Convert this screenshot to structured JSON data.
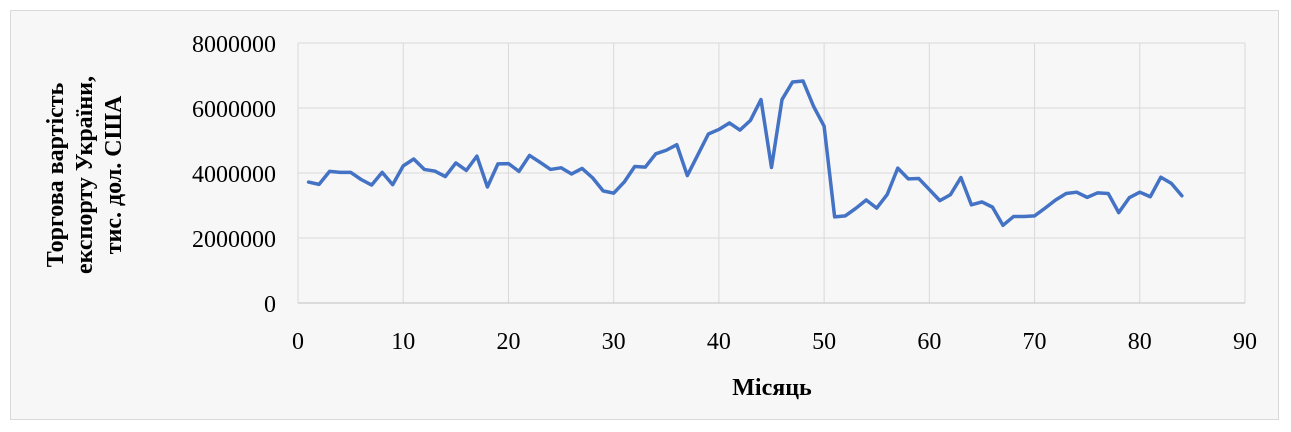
{
  "chart_data": {
    "type": "line",
    "title": "",
    "xlabel": "Місяць",
    "ylabel_lines": [
      "Торгова вартість",
      "експорту України,",
      "тис. дол. США"
    ],
    "xlim": [
      0,
      90
    ],
    "ylim": [
      0,
      8000000
    ],
    "xticks": [
      0,
      10,
      20,
      30,
      40,
      50,
      60,
      70,
      80,
      90
    ],
    "yticks": [
      0,
      2000000,
      4000000,
      6000000,
      8000000
    ],
    "xtick_labels": [
      "0",
      "10",
      "20",
      "30",
      "40",
      "50",
      "60",
      "70",
      "80",
      "90"
    ],
    "ytick_labels": [
      "0",
      "2000000",
      "4000000",
      "6000000",
      "8000000"
    ],
    "grid": true,
    "legend": "none",
    "series": [
      {
        "color": "#4472c4",
        "x": [
          1,
          2,
          3,
          4,
          5,
          6,
          7,
          8,
          9,
          10,
          11,
          12,
          13,
          14,
          15,
          16,
          17,
          18,
          19,
          20,
          21,
          22,
          23,
          24,
          25,
          26,
          27,
          28,
          29,
          30,
          31,
          32,
          33,
          34,
          35,
          36,
          37,
          38,
          39,
          40,
          41,
          42,
          43,
          44,
          45,
          46,
          47,
          48,
          49,
          50,
          51,
          52,
          53,
          54,
          55,
          56,
          57,
          58,
          59,
          60,
          61,
          62,
          63,
          64,
          65,
          66,
          67,
          68,
          69,
          70,
          71,
          72,
          73,
          74,
          75,
          76,
          77,
          78,
          79,
          80,
          81,
          82,
          83,
          84
        ],
        "values": [
          3720000,
          3650000,
          4050000,
          4020000,
          4020000,
          3800000,
          3630000,
          4020000,
          3640000,
          4220000,
          4430000,
          4110000,
          4060000,
          3890000,
          4310000,
          4080000,
          4520000,
          3570000,
          4280000,
          4290000,
          4050000,
          4540000,
          4330000,
          4110000,
          4160000,
          3970000,
          4140000,
          3850000,
          3450000,
          3380000,
          3720000,
          4200000,
          4180000,
          4590000,
          4700000,
          4870000,
          3920000,
          4560000,
          5200000,
          5340000,
          5540000,
          5320000,
          5620000,
          6260000,
          4170000,
          6260000,
          6800000,
          6830000,
          6050000,
          5440000,
          2650000,
          2680000,
          2910000,
          3170000,
          2920000,
          3340000,
          4150000,
          3820000,
          3830000,
          3490000,
          3150000,
          3330000,
          3860000,
          3020000,
          3110000,
          2950000,
          2390000,
          2660000,
          2660000,
          2680000,
          2920000,
          3170000,
          3370000,
          3410000,
          3250000,
          3390000,
          3370000,
          2780000,
          3240000,
          3410000,
          3270000,
          3870000,
          3680000,
          3300000
        ]
      }
    ]
  }
}
